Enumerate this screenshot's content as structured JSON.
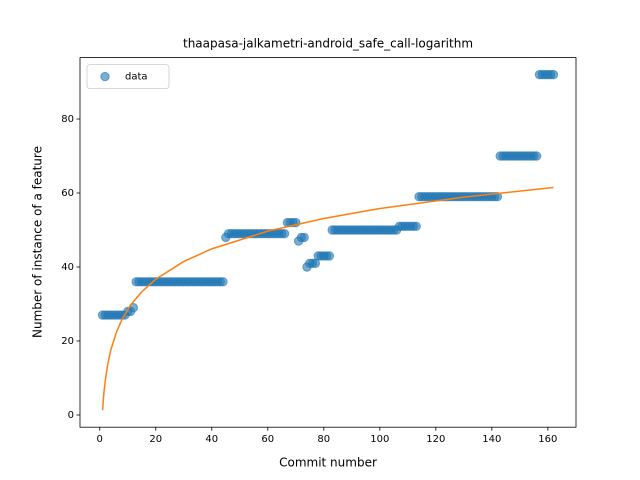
{
  "chart_data": {
    "type": "scatter",
    "title": "thaapasa-jalkametri-android_safe_call-logarithm",
    "x_label": "Commit number",
    "y_label": "Number of instance of a feature",
    "xlim": [
      -7.05,
      170.05
    ],
    "ylim": [
      -3.3,
      96.6
    ],
    "xticks": [
      0,
      20,
      40,
      60,
      80,
      100,
      120,
      140,
      160
    ],
    "yticks": [
      0,
      20,
      40,
      60,
      80
    ],
    "legend": "upper left",
    "series": [
      {
        "name": "data",
        "color": "#1f77b4",
        "x": [
          1,
          2,
          3,
          4,
          5,
          6,
          7,
          8,
          9,
          10,
          11,
          12,
          13,
          14,
          15,
          16,
          17,
          18,
          19,
          20,
          21,
          22,
          23,
          24,
          25,
          26,
          27,
          28,
          29,
          30,
          31,
          32,
          33,
          34,
          35,
          36,
          37,
          38,
          39,
          40,
          41,
          42,
          43,
          44,
          45,
          46,
          47,
          48,
          49,
          50,
          51,
          52,
          53,
          54,
          55,
          56,
          57,
          58,
          59,
          60,
          61,
          62,
          63,
          64,
          65,
          66,
          67,
          68,
          69,
          70,
          71,
          72,
          73,
          74,
          75,
          76,
          77,
          78,
          79,
          80,
          81,
          82,
          83,
          84,
          85,
          86,
          87,
          88,
          89,
          90,
          91,
          92,
          93,
          94,
          95,
          96,
          97,
          98,
          99,
          100,
          101,
          102,
          103,
          104,
          105,
          106,
          107,
          108,
          109,
          110,
          111,
          112,
          113,
          114,
          115,
          116,
          117,
          118,
          119,
          120,
          121,
          122,
          123,
          124,
          125,
          126,
          127,
          128,
          129,
          130,
          131,
          132,
          133,
          134,
          135,
          136,
          137,
          138,
          139,
          140,
          141,
          142,
          143,
          144,
          145,
          146,
          147,
          148,
          149,
          150,
          151,
          152,
          153,
          154,
          155,
          156,
          157,
          158,
          159,
          160,
          161,
          162
        ],
        "values": [
          27,
          27,
          27,
          27,
          27,
          27,
          27,
          27,
          27,
          28,
          28,
          29,
          36,
          36,
          36,
          36,
          36,
          36,
          36,
          36,
          36,
          36,
          36,
          36,
          36,
          36,
          36,
          36,
          36,
          36,
          36,
          36,
          36,
          36,
          36,
          36,
          36,
          36,
          36,
          36,
          36,
          36,
          36,
          36,
          48,
          49,
          49,
          49,
          49,
          49,
          49,
          49,
          49,
          49,
          49,
          49,
          49,
          49,
          49,
          49,
          49,
          49,
          49,
          49,
          49,
          49,
          52,
          52,
          52,
          52,
          47,
          48,
          48,
          40,
          41,
          41,
          41,
          43,
          43,
          43,
          43,
          43,
          50,
          50,
          50,
          50,
          50,
          50,
          50,
          50,
          50,
          50,
          50,
          50,
          50,
          50,
          50,
          50,
          50,
          50,
          50,
          50,
          50,
          50,
          50,
          50,
          51,
          51,
          51,
          51,
          51,
          51,
          51,
          59,
          59,
          59,
          59,
          59,
          59,
          59,
          59,
          59,
          59,
          59,
          59,
          59,
          59,
          59,
          59,
          59,
          59,
          59,
          59,
          59,
          59,
          59,
          59,
          59,
          59,
          59,
          59,
          59,
          70,
          70,
          70,
          70,
          70,
          70,
          70,
          70,
          70,
          70,
          70,
          70,
          70,
          70,
          92,
          92,
          92,
          92,
          92,
          92
        ]
      }
    ],
    "curve": {
      "color": "#ff7f0e",
      "x": [
        1,
        1.5,
        2,
        3,
        4,
        6,
        8,
        11,
        15,
        20,
        30,
        40,
        60,
        80,
        100,
        130,
        162
      ],
      "values": [
        1.3,
        6.1,
        9.5,
        14.3,
        17.7,
        22.5,
        25.9,
        29.7,
        33.3,
        36.7,
        41.5,
        44.9,
        49.7,
        53.1,
        55.8,
        58.9,
        61.5
      ]
    }
  }
}
